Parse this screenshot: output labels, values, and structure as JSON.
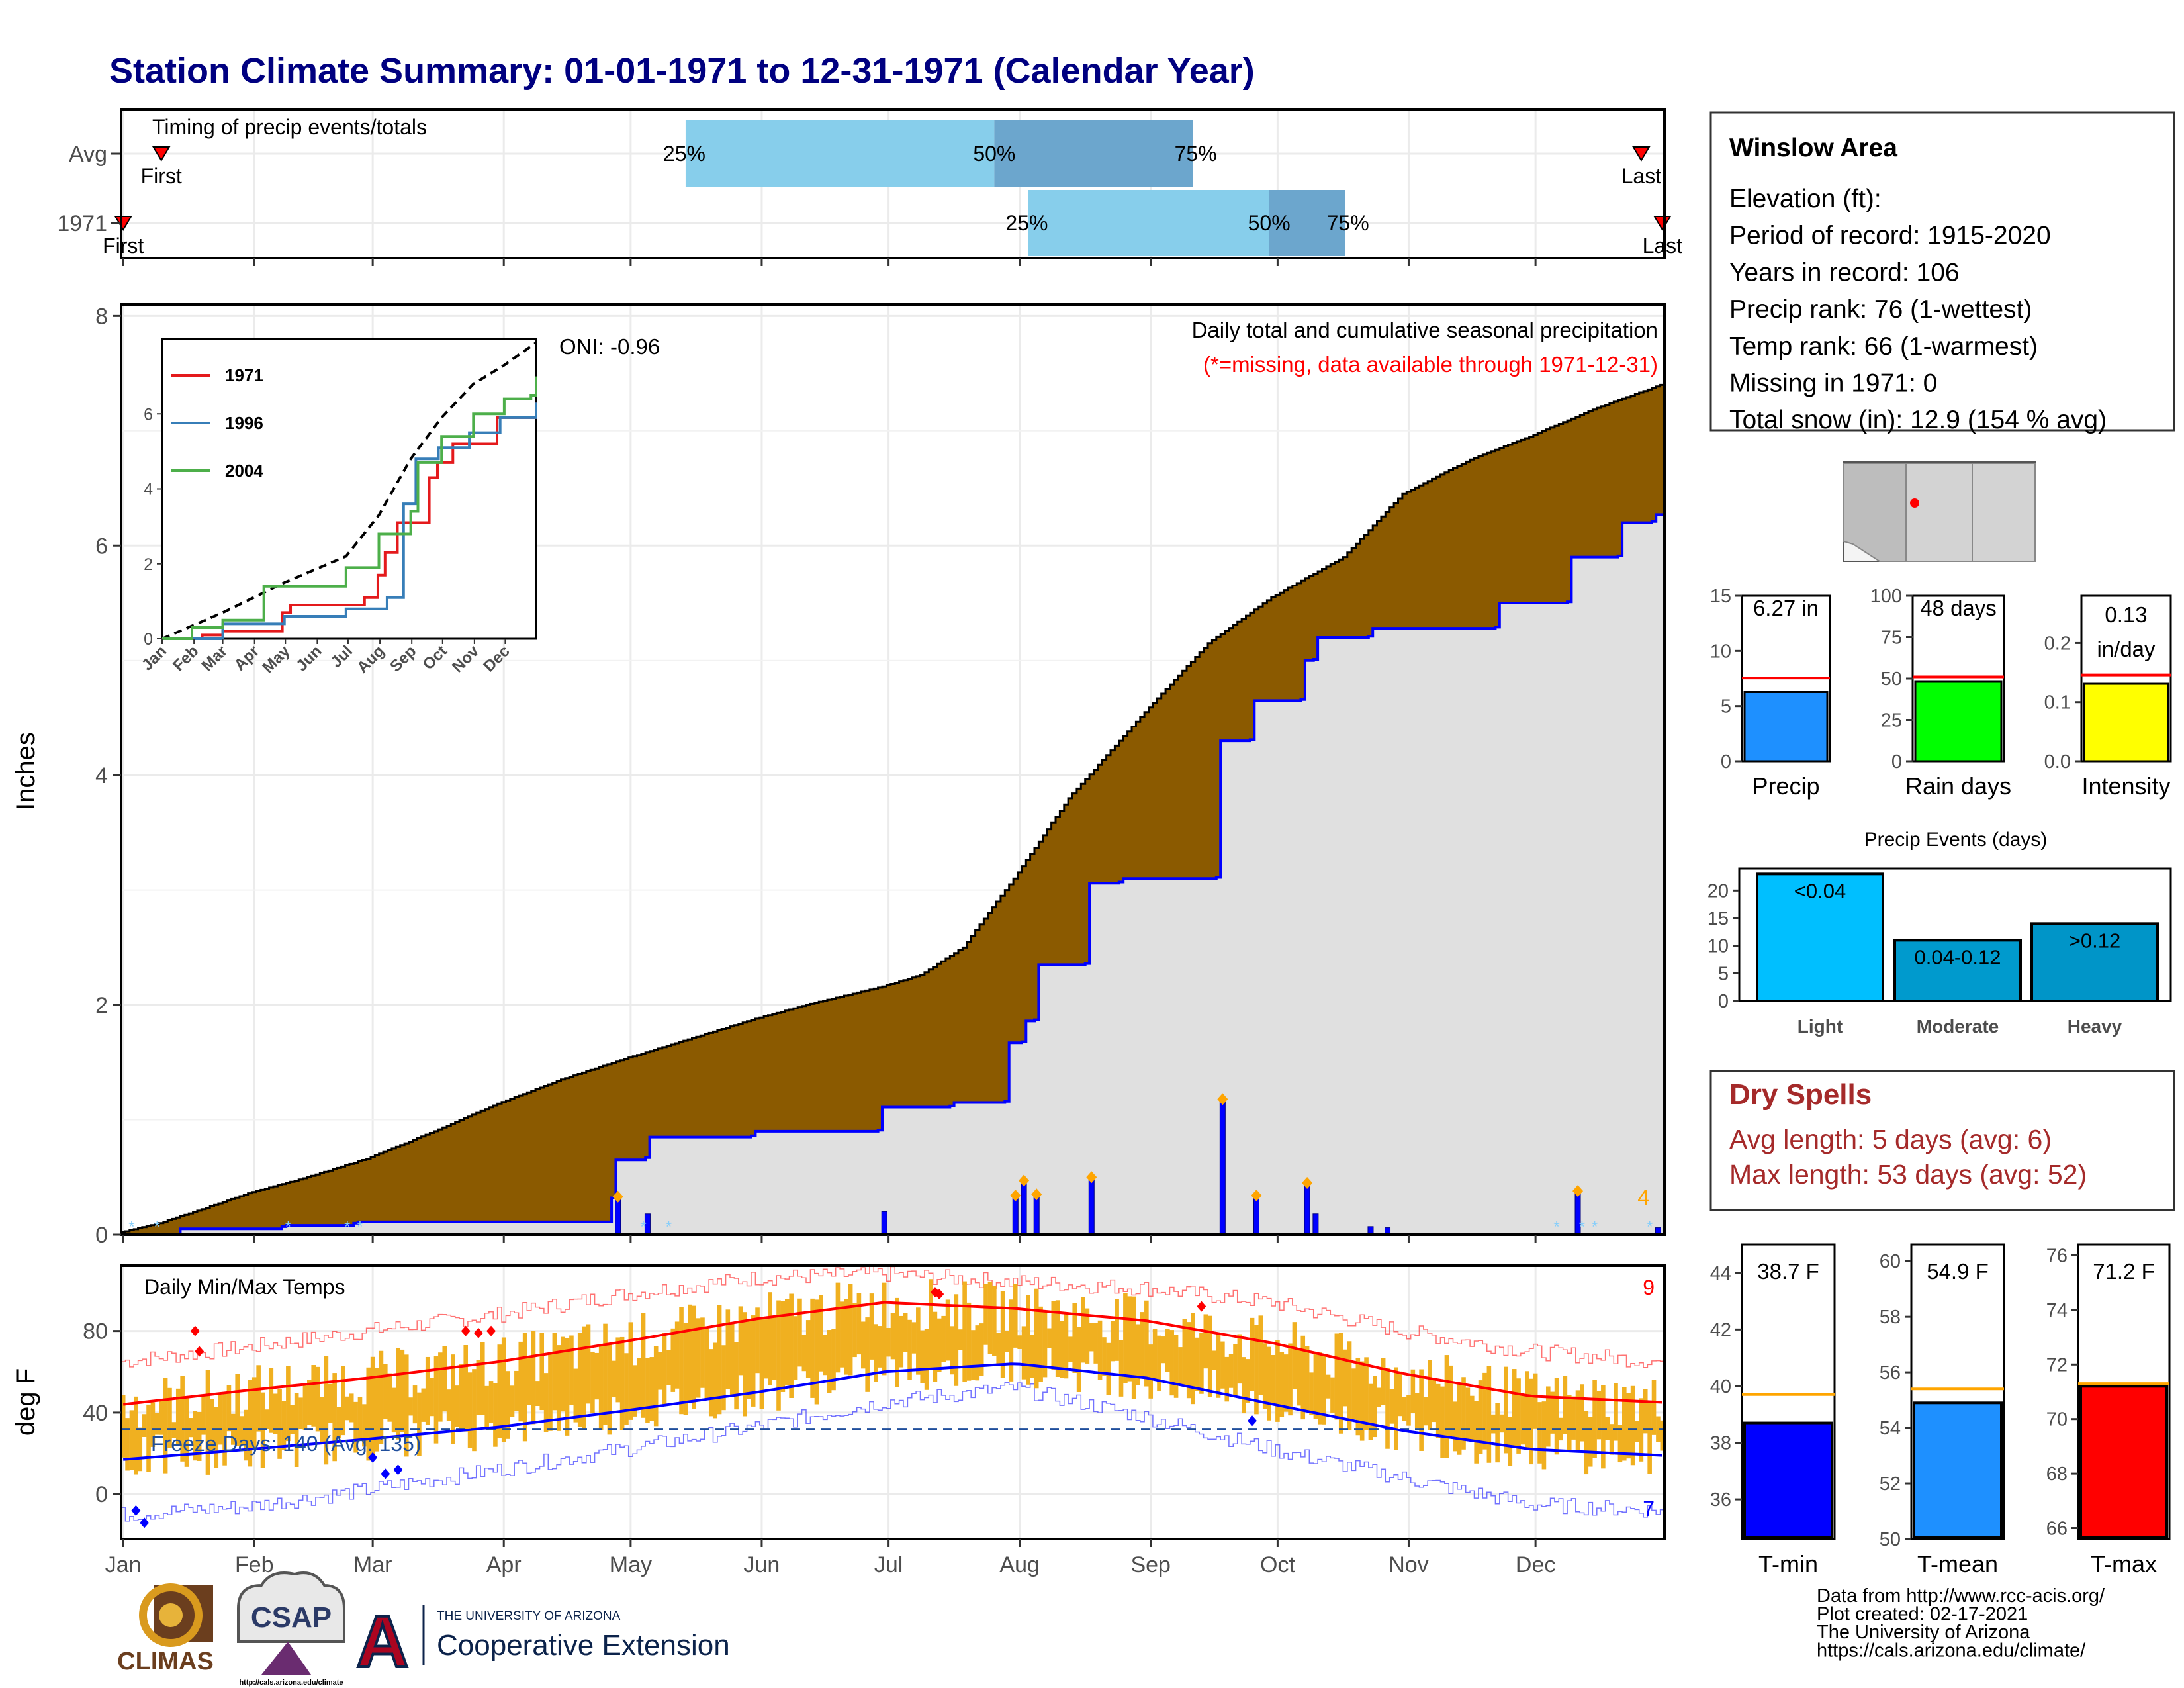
{
  "title": "Station Climate Summary: 01-01-1971 to 12-31-1971 (Calendar Year)",
  "months": [
    "Jan",
    "Feb",
    "Mar",
    "Apr",
    "May",
    "Jun",
    "Jul",
    "Aug",
    "Sep",
    "Oct",
    "Nov",
    "Dec"
  ],
  "timing": {
    "label": "Timing of precip events/totals",
    "rows": [
      {
        "name": "Avg",
        "first_label": "First",
        "last_label": "Last",
        "first_doy": 10,
        "last_doy": 360,
        "q25_label": "25%",
        "q50_label": "50%",
        "q75_label": "75%",
        "q25_doy": 134,
        "q50_doy": 207,
        "q75_doy": 254
      },
      {
        "name": "1971",
        "first_label": "First",
        "last_label": "Last",
        "first_doy": 1,
        "last_doy": 365,
        "q25_label": "25%",
        "q50_label": "50%",
        "q75_label": "75%",
        "q25_doy": 215,
        "q50_doy": 272,
        "q75_doy": 290
      }
    ]
  },
  "station": {
    "name": "Winslow Area",
    "lines": [
      "Elevation (ft):",
      "Period of record: 1915-2020",
      "Years in record: 106",
      "Precip rank: 76 (1-wettest)",
      "Temp rank: 66 (1-warmest)",
      "Missing in 1971: 0",
      "Total snow (in): 12.9 (154 % avg)"
    ]
  },
  "precip_panel": {
    "ylabel": "Inches",
    "oni": "ONI: -0.96",
    "subtitle": "Daily total and cumulative seasonal precipitation",
    "missing_note": "(*=missing, data available through 1971-12-31)",
    "corner_count": "4",
    "y_ticks": [
      0,
      2,
      4,
      6,
      8
    ],
    "ylim": [
      0,
      8.1
    ]
  },
  "temp_panel": {
    "label": "Daily Min/Max Temps",
    "ylabel": "deg F",
    "freeze_label": "Freeze Days: 140 (Avg: 135)",
    "count_hot": "9",
    "count_cold": "7",
    "y_ticks": [
      0,
      40,
      80
    ],
    "ylim": [
      -22,
      112
    ],
    "freeze_line": 32
  },
  "stat_bars": [
    {
      "label": "Precip",
      "value_text": "6.27 in",
      "value": 6.27,
      "avg": 7.55,
      "ticks": [
        0,
        5,
        10,
        15
      ],
      "max": 15,
      "color": "#1E90FF"
    },
    {
      "label": "Rain days",
      "value_text": "48 days",
      "value": 48,
      "avg": 51,
      "ticks": [
        0,
        25,
        50,
        75,
        100
      ],
      "max": 100,
      "color": "#00FF00"
    },
    {
      "label": "Intensity",
      "value_text": "0.13 in/day",
      "value_text_1": "0.13",
      "value_text_2": "in/day",
      "value": 0.131,
      "avg": 0.146,
      "ticks": [
        0.0,
        0.1,
        0.2
      ],
      "ticks_text": [
        "0.0",
        "0.1",
        "0.2"
      ],
      "max": 0.28,
      "color": "#FFFF00"
    }
  ],
  "events": {
    "title": "Precip Events (days)",
    "categories": [
      "Light",
      "Moderate",
      "Heavy"
    ],
    "bar_labels": [
      "<0.04",
      "0.04-0.12",
      ">0.12"
    ],
    "values": [
      23,
      11,
      14
    ],
    "ticks": [
      0,
      5,
      10,
      15,
      20
    ],
    "colors": [
      "#00BFFF",
      "#009ACD",
      "#0095C8"
    ]
  },
  "dry_spells": {
    "title": "Dry Spells",
    "avg_line": "Avg length: 5 days (avg: 6)",
    "max_line": "Max length: 53 days (avg: 52)"
  },
  "temp_bars": [
    {
      "label": "T-min",
      "value_text": "38.7 F",
      "value": 38.7,
      "avg": 39.7,
      "ticks": [
        36,
        38,
        40,
        42,
        44
      ],
      "min": 34.6,
      "max": 45,
      "color": "#0000FF"
    },
    {
      "label": "T-mean",
      "value_text": "54.9 F",
      "value": 54.9,
      "avg": 55.4,
      "ticks": [
        50,
        52,
        54,
        56,
        58,
        60
      ],
      "min": 50,
      "max": 60.6,
      "color": "#1E90FF"
    },
    {
      "label": "T-max",
      "value_text": "71.2 F",
      "value": 71.2,
      "avg": 71.3,
      "ticks": [
        66,
        68,
        70,
        72,
        74,
        76
      ],
      "min": 65.6,
      "max": 76.4,
      "color": "#FF0000"
    }
  ],
  "footer": {
    "lines": [
      "Data from http://www.rcc-acis.org/",
      "Plot created: 02-17-2021",
      "The University of Arizona",
      "https://cals.arizona.edu/climate/"
    ]
  },
  "logos": {
    "climas": "CLIMAS",
    "csap": "CSAP",
    "csap_url": "http://cals.arizona.edu/climate",
    "ua_small": "THE UNIVERSITY OF ARIZONA",
    "ua_big": "Cooperative Extension",
    "ua_letter": "A"
  },
  "colors": {
    "title": "#000080",
    "avg_band": "#8B5A00",
    "year_area": "#E0E0E0",
    "year_line": "#0000FF",
    "temp_bars": "#F0B020",
    "avg_max": "#FF0000",
    "avg_min": "#0000FF",
    "q_light": "#87CEEB",
    "q_dark": "#6CA6CD",
    "dry_title": "#A52A2A"
  },
  "chart_data": [
    {
      "type": "area",
      "title": "Daily total and cumulative seasonal precipitation",
      "ylabel": "Inches",
      "ylim": [
        0,
        8.1
      ],
      "x_units": "day of year",
      "series": [
        {
          "name": "cumulative average",
          "x": [
            1,
            10,
            20,
            31,
            45,
            59,
            75,
            90,
            105,
            120,
            135,
            151,
            165,
            181,
            190,
            200,
            212,
            225,
            243,
            258,
            273,
            290,
            304,
            320,
            334,
            350,
            365
          ],
          "values": [
            0.02,
            0.1,
            0.22,
            0.36,
            0.5,
            0.66,
            0.9,
            1.14,
            1.35,
            1.53,
            1.7,
            1.88,
            2.02,
            2.16,
            2.26,
            2.5,
            3.1,
            3.8,
            4.55,
            5.15,
            5.55,
            5.9,
            6.45,
            6.75,
            6.95,
            7.2,
            7.4
          ]
        },
        {
          "name": "cumulative 1971",
          "x": [
            1,
            15,
            39,
            40,
            56,
            57,
            117,
            118,
            125,
            126,
            150,
            151,
            180,
            181,
            197,
            198,
            210,
            211,
            214,
            215,
            217,
            218,
            229,
            230,
            237,
            238,
            260,
            261,
            268,
            269,
            280,
            281,
            283,
            284,
            296,
            297,
            326,
            327,
            343,
            344,
            355,
            356,
            363,
            364,
            365
          ],
          "values": [
            0.0,
            0.05,
            0.07,
            0.08,
            0.1,
            0.11,
            0.32,
            0.65,
            0.67,
            0.85,
            0.86,
            0.9,
            0.91,
            1.11,
            1.12,
            1.15,
            1.16,
            1.67,
            1.68,
            1.86,
            1.87,
            2.35,
            2.36,
            3.06,
            3.07,
            3.1,
            3.11,
            4.3,
            4.31,
            4.65,
            4.66,
            5.0,
            5.01,
            5.2,
            5.21,
            5.28,
            5.29,
            5.5,
            5.51,
            5.9,
            5.91,
            6.2,
            6.21,
            6.27,
            6.27
          ]
        },
        {
          "name": "daily precip 1971",
          "x": [
            118,
            125,
            181,
            212,
            214,
            217,
            230,
            261,
            269,
            281,
            283,
            296,
            300,
            345,
            364
          ],
          "values": [
            0.33,
            0.18,
            0.2,
            0.34,
            0.47,
            0.35,
            0.5,
            1.18,
            0.34,
            0.45,
            0.18,
            0.07,
            0.06,
            0.38,
            0.06
          ]
        }
      ]
    },
    {
      "type": "line",
      "x_units": "day of year",
      "legend": [
        "1971",
        "1996",
        "2004"
      ],
      "series": [
        {
          "name": "avg",
          "x": [
            1,
            60,
            120,
            180,
            212,
            243,
            273,
            304,
            334,
            365
          ],
          "values": [
            0,
            0.7,
            1.5,
            2.2,
            3.3,
            4.8,
            5.9,
            6.8,
            7.3,
            7.9
          ]
        },
        {
          "name": "1971",
          "x": [
            1,
            40,
            60,
            118,
            126,
            181,
            198,
            211,
            218,
            230,
            261,
            269,
            284,
            327,
            365
          ],
          "values": [
            0,
            0.1,
            0.2,
            0.7,
            0.9,
            0.9,
            1.1,
            1.7,
            2.3,
            3.1,
            4.3,
            4.7,
            5.2,
            5.9,
            6.3
          ]
        },
        {
          "name": "1996",
          "x": [
            1,
            60,
            120,
            180,
            220,
            236,
            248,
            270,
            300,
            330,
            365
          ],
          "values": [
            0,
            0.4,
            0.6,
            0.8,
            1.1,
            3.6,
            4.8,
            5.1,
            5.5,
            5.9,
            6.3
          ]
        },
        {
          "name": "2004",
          "x": [
            1,
            30,
            60,
            100,
            150,
            180,
            212,
            243,
            250,
            273,
            304,
            334,
            360,
            365
          ],
          "values": [
            0,
            0.3,
            0.5,
            1.4,
            1.4,
            1.9,
            2.8,
            3.4,
            4.7,
            5.4,
            6.0,
            6.4,
            6.5,
            7.0
          ]
        }
      ]
    },
    {
      "type": "bar",
      "title": "Daily Min/Max Temps",
      "ylabel": "deg F",
      "ylim": [
        -22,
        112
      ],
      "x_units": "day of year",
      "series": [
        {
          "name": "avg max",
          "x": [
            1,
            31,
            59,
            90,
            120,
            151,
            181,
            212,
            243,
            273,
            304,
            334,
            365
          ],
          "values": [
            44,
            51,
            57,
            65,
            75,
            86,
            94,
            91,
            85,
            74,
            59,
            48,
            45
          ]
        },
        {
          "name": "avg min",
          "x": [
            1,
            31,
            59,
            90,
            120,
            151,
            181,
            212,
            243,
            273,
            304,
            334,
            365
          ],
          "values": [
            17,
            22,
            27,
            33,
            41,
            50,
            60,
            64,
            57,
            44,
            31,
            22,
            19
          ]
        },
        {
          "name": "record max",
          "x": [
            1,
            31,
            59,
            90,
            120,
            151,
            181,
            212,
            243,
            273,
            304,
            334,
            365
          ],
          "values": [
            65,
            72,
            80,
            88,
            98,
            106,
            108,
            104,
            101,
            94,
            80,
            70,
            65
          ]
        },
        {
          "name": "record min",
          "x": [
            1,
            31,
            59,
            90,
            120,
            151,
            181,
            212,
            243,
            273,
            304,
            334,
            365
          ],
          "values": [
            -10,
            -6,
            2,
            12,
            22,
            33,
            45,
            52,
            38,
            22,
            8,
            -5,
            -8
          ]
        }
      ]
    },
    {
      "type": "bar",
      "categories": [
        "Precip"
      ],
      "values": [
        6.27
      ],
      "ylim": [
        0,
        15
      ]
    },
    {
      "type": "bar",
      "categories": [
        "Rain days"
      ],
      "values": [
        48
      ],
      "ylim": [
        0,
        100
      ]
    },
    {
      "type": "bar",
      "categories": [
        "Intensity"
      ],
      "values": [
        0.13
      ],
      "ylim": [
        0,
        0.28
      ]
    },
    {
      "type": "bar",
      "title": "Precip Events (days)",
      "categories": [
        "Light",
        "Moderate",
        "Heavy"
      ],
      "values": [
        23,
        11,
        14
      ]
    },
    {
      "type": "bar",
      "categories": [
        "T-min"
      ],
      "values": [
        38.7
      ]
    },
    {
      "type": "bar",
      "categories": [
        "T-mean"
      ],
      "values": [
        54.9
      ]
    },
    {
      "type": "bar",
      "categories": [
        "T-max"
      ],
      "values": [
        71.2
      ]
    }
  ]
}
